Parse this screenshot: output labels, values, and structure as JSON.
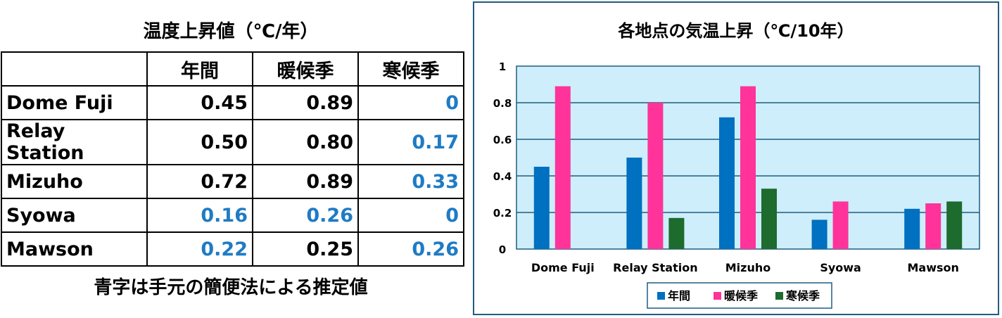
{
  "table": {
    "title": "温度上昇値（℃/年）",
    "headers": [
      "",
      "年間",
      "暖候季",
      "寒候季"
    ],
    "rows": [
      {
        "site": "Dome Fuji",
        "cells": [
          {
            "v": "0.45",
            "c": "#000000"
          },
          {
            "v": "0.89",
            "c": "#000000"
          },
          {
            "v": "0",
            "c": "#1f7bc4"
          }
        ]
      },
      {
        "site": "Relay Station",
        "cells": [
          {
            "v": "0.50",
            "c": "#000000"
          },
          {
            "v": "0.80",
            "c": "#000000"
          },
          {
            "v": "0.17",
            "c": "#1f7bc4"
          }
        ]
      },
      {
        "site": "Mizuho",
        "cells": [
          {
            "v": "0.72",
            "c": "#000000"
          },
          {
            "v": "0.89",
            "c": "#000000"
          },
          {
            "v": "0.33",
            "c": "#1f7bc4"
          }
        ]
      },
      {
        "site": "Syowa",
        "cells": [
          {
            "v": "0.16",
            "c": "#1f7bc4"
          },
          {
            "v": "0.26",
            "c": "#1f7bc4"
          },
          {
            "v": "0",
            "c": "#1f7bc4"
          }
        ]
      },
      {
        "site": "Mawson",
        "cells": [
          {
            "v": "0.22",
            "c": "#1f7bc4"
          },
          {
            "v": "0.25",
            "c": "#000000"
          },
          {
            "v": "0.26",
            "c": "#1f7bc4"
          }
        ]
      }
    ],
    "note": "青字は手元の簡便法による推定値"
  },
  "chart_data": {
    "type": "bar",
    "title": "各地点の気温上昇（℃/10年）",
    "categories": [
      "Dome Fuji",
      "Relay Station",
      "Mizuho",
      "Syowa",
      "Mawson"
    ],
    "series": [
      {
        "name": "年間",
        "color": "#0070c0",
        "values": [
          0.45,
          0.5,
          0.72,
          0.16,
          0.22
        ]
      },
      {
        "name": "暖候季",
        "color": "#ff3399",
        "values": [
          0.89,
          0.8,
          0.89,
          0.26,
          0.25
        ]
      },
      {
        "name": "寒候季",
        "color": "#1e6b2e",
        "values": [
          0,
          0.17,
          0.33,
          0,
          0.26
        ]
      }
    ],
    "ylim": [
      0,
      1
    ],
    "yticks": [
      "0",
      "0.2",
      "0.4",
      "0.6",
      "0.8",
      "1"
    ],
    "grid": true,
    "plot_bg": "#cdeefa",
    "legend": "bottom"
  }
}
